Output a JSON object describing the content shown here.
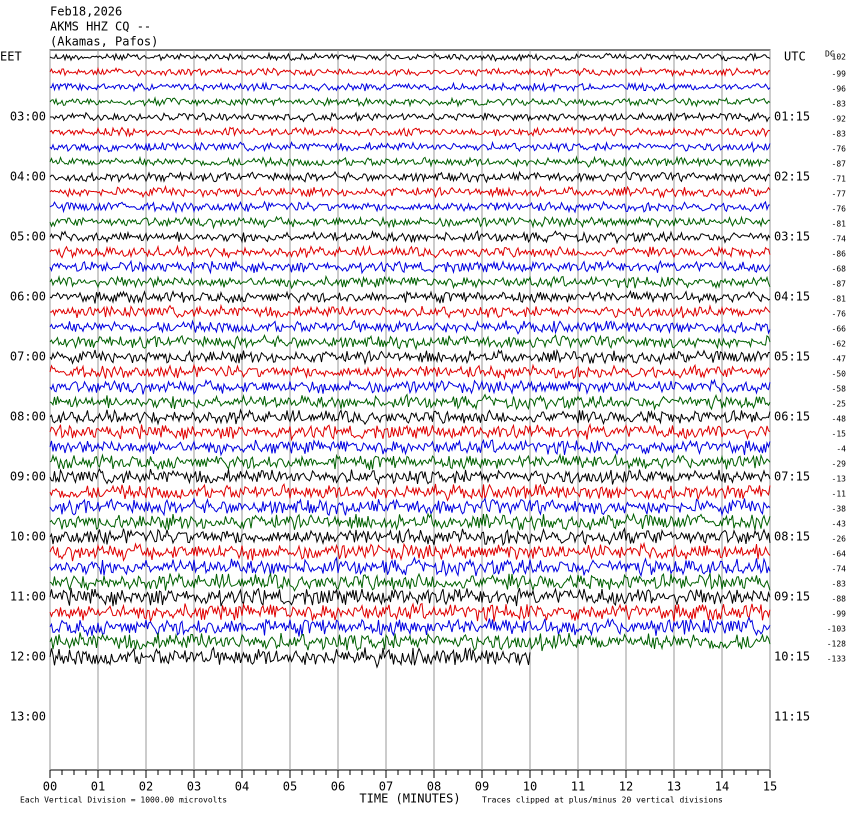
{
  "header": {
    "lines": [
      "Feb18,2026",
      "AKMS HHZ CQ --",
      "(Akamas, Pafos)"
    ]
  },
  "left_axis": {
    "title": "EET",
    "labels": [
      "03:00",
      "04:00",
      "05:00",
      "06:00",
      "07:00",
      "08:00",
      "09:00",
      "10:00",
      "11:00",
      "12:00",
      "13:00"
    ]
  },
  "right_axis": {
    "title": "UTC",
    "labels": [
      "01:15",
      "02:15",
      "03:15",
      "04:15",
      "05:15",
      "06:15",
      "07:15",
      "08:15",
      "09:15",
      "10:15",
      "11:15"
    ]
  },
  "dc": {
    "title": "DC",
    "offsets": [
      102,
      -99,
      -96,
      -83,
      -92,
      -83,
      -76,
      -87,
      -71,
      -77,
      -76,
      -81,
      -74,
      -86,
      -68,
      -87,
      -81,
      -76,
      -66,
      -62,
      -47,
      -50,
      -58,
      -25,
      -48,
      -15,
      -4,
      -29,
      -13,
      -11,
      -38,
      -43,
      -26,
      -64,
      -74,
      -83,
      -88,
      -99,
      -103,
      -128,
      -133
    ]
  },
  "x_axis": {
    "title": "TIME (MINUTES)",
    "ticks": [
      "00",
      "01",
      "02",
      "03",
      "04",
      "05",
      "06",
      "07",
      "08",
      "09",
      "10",
      "11",
      "12",
      "13",
      "14",
      "15"
    ]
  },
  "footer": {
    "left": "Each Vertical Division = 1000.00 microvolts",
    "right": "Traces clipped at plus/minus 20 vertical divisions"
  },
  "trace_colors": [
    "#000000",
    "#e00000",
    "#0000e0",
    "#006000"
  ]
}
